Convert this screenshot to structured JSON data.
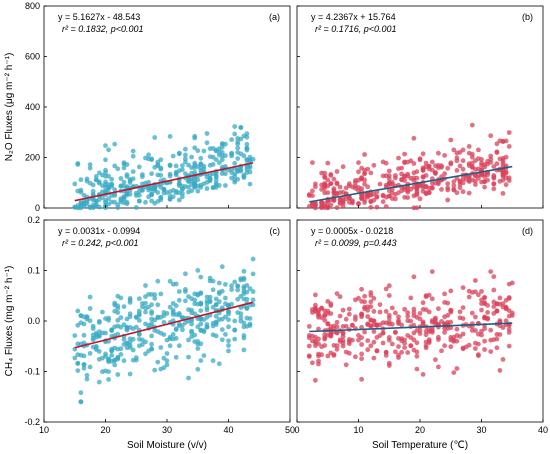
{
  "chart_data": [
    {
      "type": "scatter",
      "panel_label": "(a)",
      "equation": "y = 5.1627x - 48.543",
      "r2_line": "r² = 0.1832, p<0.001",
      "xlabel": "",
      "ylabel": "N₂O Fluxes (μg m⁻² h⁻¹)",
      "xlim": [
        10,
        50
      ],
      "ylim": [
        0,
        800
      ],
      "xticks": [],
      "yticks": [
        "0",
        "200",
        "400",
        "600",
        "800"
      ],
      "point_color": "#3aa9c4",
      "line_color": "#c0162a",
      "fit": {
        "slope": 5.1627,
        "intercept": -48.543,
        "x_range": [
          15,
          44
        ]
      }
    },
    {
      "type": "scatter",
      "panel_label": "(b)",
      "equation": "y = 4.2367x + 15.764",
      "r2_line": "r² = 0.1716, p<0.001",
      "xlabel": "",
      "ylabel": "",
      "xlim": [
        0,
        40
      ],
      "ylim": [
        0,
        800
      ],
      "xticks": [],
      "yticks": [],
      "point_color": "#d9425a",
      "line_color": "#1f5f86",
      "fit": {
        "slope": 4.2367,
        "intercept": 15.764,
        "x_range": [
          2,
          35
        ]
      }
    },
    {
      "type": "scatter",
      "panel_label": "(c)",
      "equation": "y = 0.0031x - 0.0994",
      "r2_line": "r² = 0.242, p<0.001",
      "xlabel": "Soil Moisture (v/v)",
      "ylabel": "CH₄ Fluxes (mg m⁻² h⁻¹)",
      "xlim": [
        10,
        50
      ],
      "ylim": [
        -0.2,
        0.2
      ],
      "xticks": [
        "10",
        "20",
        "30",
        "40",
        "50"
      ],
      "yticks": [
        "-0.2",
        "-0.1",
        "0.0",
        "0.1",
        "0.2"
      ],
      "point_color": "#3aa9c4",
      "line_color": "#c0162a",
      "fit": {
        "slope": 0.0031,
        "intercept": -0.0994,
        "x_range": [
          15,
          44
        ]
      }
    },
    {
      "type": "scatter",
      "panel_label": "(d)",
      "equation": "y = 0.0005x - 0.0218",
      "r2_line": "r² = 0.0099, p=0.443",
      "xlabel": "Soil Temperature (℃)",
      "ylabel": "",
      "xlim": [
        0,
        40
      ],
      "ylim": [
        -0.2,
        0.2
      ],
      "xticks": [
        "0",
        "10",
        "20",
        "30",
        "40"
      ],
      "yticks": [],
      "point_color": "#d9425a",
      "line_color": "#1f5f86",
      "fit": {
        "slope": 0.0005,
        "intercept": -0.0218,
        "x_range": [
          2,
          35
        ]
      }
    }
  ]
}
